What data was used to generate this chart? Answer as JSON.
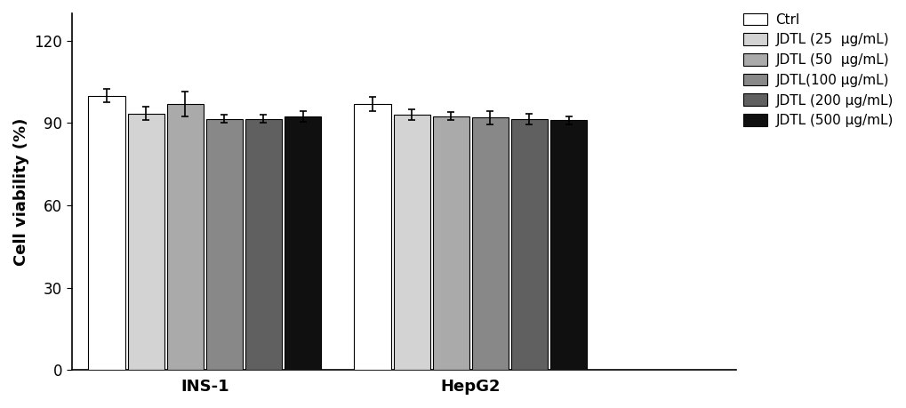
{
  "groups": [
    "INS-1",
    "HepG2"
  ],
  "conditions": [
    "Ctrl",
    "JDTL (25  μg/mL)",
    "JDTL (50  μg/mL)",
    "JDTL(100 μg/mL)",
    "JDTL (200 μg/mL)",
    "JDTL (500 μg/mL)"
  ],
  "values": [
    [
      100.0,
      93.5,
      97.0,
      91.5,
      91.5,
      92.5
    ],
    [
      97.0,
      93.0,
      92.5,
      92.0,
      91.5,
      91.0
    ]
  ],
  "errors": [
    [
      2.5,
      2.5,
      4.5,
      1.5,
      1.5,
      2.0
    ],
    [
      2.5,
      2.0,
      1.5,
      2.5,
      2.0,
      1.5
    ]
  ],
  "bar_colors": [
    "#ffffff",
    "#d3d3d3",
    "#aaaaaa",
    "#888888",
    "#606060",
    "#101010"
  ],
  "bar_edgecolor": "#000000",
  "ylabel": "Cell viability (%)",
  "ylim": [
    0,
    130
  ],
  "yticks": [
    0,
    30,
    60,
    90,
    120
  ],
  "bar_width": 0.055,
  "group_centers": [
    0.22,
    0.62
  ],
  "group_span": 0.32,
  "background_color": "#ffffff",
  "legend_labels": [
    "Ctrl",
    "JDTL (25  μg/mL)",
    "JDTL (50  μg/mL)",
    "JDTL(100 μg/mL)",
    "JDTL (200 μg/mL)",
    "JDTL (500 μg/mL)"
  ],
  "fontsize_ticks": 12,
  "fontsize_ylabel": 13,
  "fontsize_xlabel": 13,
  "fontsize_legend": 11,
  "elinewidth": 1.2,
  "capsize": 3
}
